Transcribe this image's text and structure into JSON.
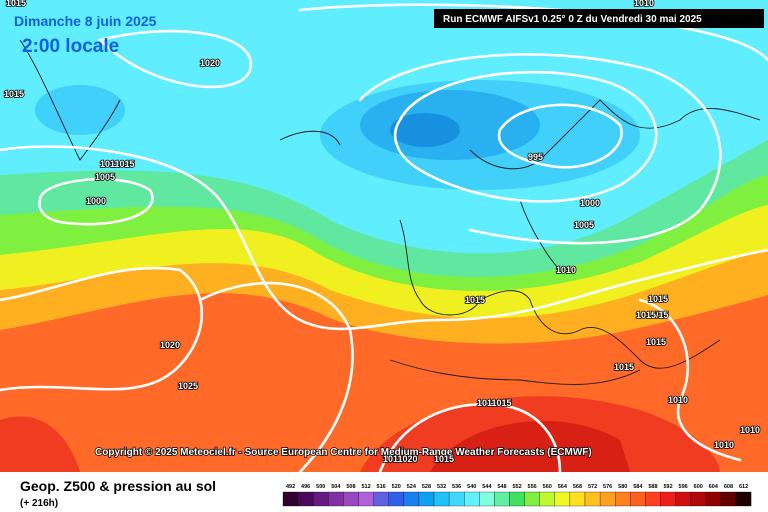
{
  "header": {
    "date": "Dimanche 8 juin 2025",
    "time": "2:00 locale",
    "run": "Run ECMWF AIFSv1 0.25° 0 Z du Vendredi 30 mai 2025"
  },
  "copyright": "Copyright © 2025 Meteociel.fr - Source European Centre for Medium-Range Weather Forecasts (ECMWF)",
  "footer": {
    "title": "Geop. Z500 & pression au sol",
    "lead": "(+ 216h)"
  },
  "isobar_labels": [
    "1015",
    "1020",
    "1015",
    "1011015",
    "1005",
    "1000",
    "995",
    "1000",
    "1005",
    "1010",
    "1015",
    "1020",
    "1025",
    "1015",
    "1015/15",
    "1015",
    "1015",
    "1010",
    "1011015",
    "1011020",
    "1015",
    "1010",
    "1010",
    "1010"
  ],
  "colorbar": {
    "levels": [
      492,
      496,
      500,
      504,
      508,
      512,
      516,
      520,
      524,
      528,
      532,
      536,
      540,
      544,
      548,
      552,
      556,
      560,
      564,
      568,
      572,
      576,
      580,
      584,
      588,
      592,
      596,
      600,
      604,
      608,
      612
    ],
    "colors": [
      "#300030",
      "#4a0a5a",
      "#661a80",
      "#8030a0",
      "#9a48c0",
      "#b060d8",
      "#6060e0",
      "#3060e8",
      "#1a80f0",
      "#10a0f0",
      "#20c0f8",
      "#40d8ff",
      "#60f0ff",
      "#80ffe0",
      "#60f0a0",
      "#40e060",
      "#80f040",
      "#c0f830",
      "#f0f820",
      "#ffe020",
      "#ffc020",
      "#ffa020",
      "#ff8020",
      "#ff6020",
      "#ff4020",
      "#f02018",
      "#d01010",
      "#b00808",
      "#900000",
      "#600000",
      "#200000"
    ]
  }
}
